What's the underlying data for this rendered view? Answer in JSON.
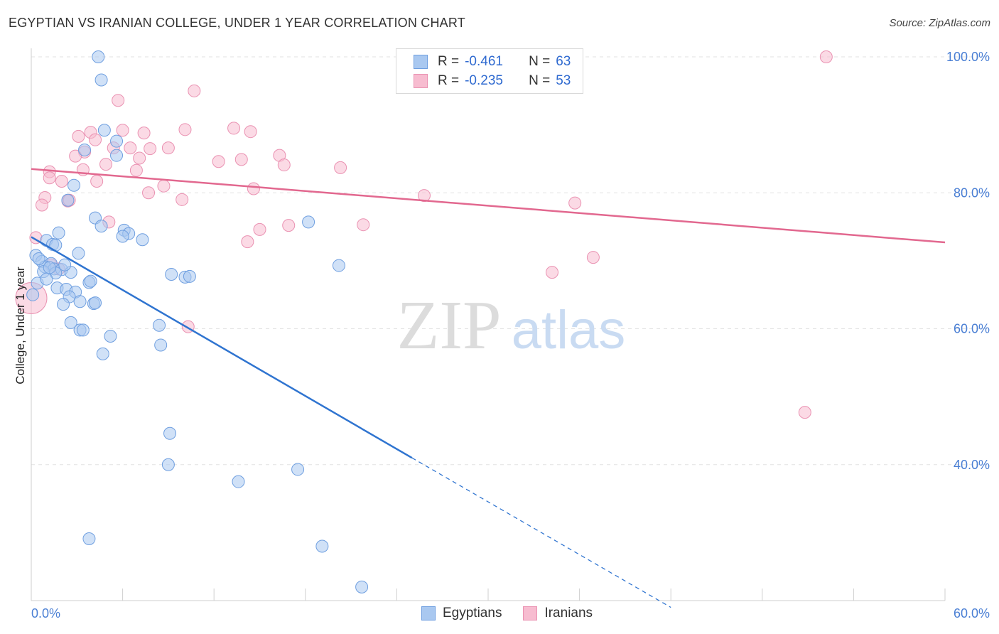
{
  "header": {
    "title": "EGYPTIAN VS IRANIAN COLLEGE, UNDER 1 YEAR CORRELATION CHART",
    "source": "Source: ZipAtlas.com"
  },
  "watermark": {
    "zip": "ZIP",
    "atlas": "atlas"
  },
  "legend": {
    "rows": [
      {
        "r_label": "R =",
        "r_value": "-0.461",
        "n_label": "N =",
        "n_value": "63"
      },
      {
        "r_label": "R =",
        "r_value": "-0.235",
        "n_label": "N =",
        "n_value": "53"
      }
    ]
  },
  "bottom_legend": {
    "items": [
      "Egyptians",
      "Iranians"
    ]
  },
  "colors": {
    "egyptians_fill": "#a9c8f0",
    "egyptians_stroke": "#6f9fe0",
    "egyptians_line": "#2f74d0",
    "iranians_fill": "#f7bcd0",
    "iranians_stroke": "#ea92b2",
    "iranians_line": "#e2688f",
    "tick_text": "#4a7fd4",
    "grid": "#e2e2e2"
  },
  "chart_data": {
    "type": "scatter",
    "title": "EGYPTIAN VS IRANIAN COLLEGE, UNDER 1 YEAR CORRELATION CHART",
    "xlabel": "",
    "ylabel": "College, Under 1 year",
    "xlim": [
      0,
      60
    ],
    "ylim": [
      20,
      100
    ],
    "x_tick_labels": [
      "0.0%",
      "60.0%"
    ],
    "y_ticks": [
      40,
      60,
      80,
      100
    ],
    "y_tick_labels": [
      "40.0%",
      "60.0%",
      "80.0%",
      "100.0%"
    ],
    "grid": true,
    "legend_position": "top-center",
    "series": [
      {
        "name": "Egyptians",
        "R": -0.461,
        "N": 63,
        "trend": {
          "x0": 0.0,
          "y0": 73.5,
          "x1": 25.0,
          "y1": 41.0,
          "dashed_to_x": 42.0,
          "dashed_to_y": 19.0
        },
        "points": [
          [
            4.4,
            100.0
          ],
          [
            4.6,
            96.6
          ],
          [
            4.8,
            89.2
          ],
          [
            5.6,
            87.6
          ],
          [
            3.5,
            86.3
          ],
          [
            5.6,
            85.5
          ],
          [
            2.8,
            81.1
          ],
          [
            2.4,
            78.9
          ],
          [
            4.2,
            76.3
          ],
          [
            4.6,
            75.1
          ],
          [
            6.1,
            74.5
          ],
          [
            6.4,
            74.0
          ],
          [
            6.0,
            73.6
          ],
          [
            7.3,
            73.1
          ],
          [
            1.8,
            74.1
          ],
          [
            1.0,
            73.0
          ],
          [
            1.4,
            72.4
          ],
          [
            1.6,
            72.3
          ],
          [
            3.1,
            71.1
          ],
          [
            0.3,
            70.8
          ],
          [
            0.7,
            69.9
          ],
          [
            1.3,
            69.6
          ],
          [
            0.9,
            69.1
          ],
          [
            1.5,
            68.8
          ],
          [
            2.0,
            68.7
          ],
          [
            1.6,
            68.2
          ],
          [
            0.8,
            68.4
          ],
          [
            2.6,
            68.3
          ],
          [
            3.8,
            66.8
          ],
          [
            3.9,
            67.0
          ],
          [
            0.4,
            66.7
          ],
          [
            1.7,
            66.0
          ],
          [
            2.3,
            65.8
          ],
          [
            2.9,
            65.4
          ],
          [
            2.5,
            64.7
          ],
          [
            3.2,
            64.0
          ],
          [
            2.1,
            63.6
          ],
          [
            4.1,
            63.7
          ],
          [
            4.2,
            63.8
          ],
          [
            0.1,
            65.0
          ],
          [
            2.6,
            60.9
          ],
          [
            3.2,
            59.8
          ],
          [
            3.4,
            59.8
          ],
          [
            5.2,
            58.9
          ],
          [
            8.4,
            60.5
          ],
          [
            8.5,
            57.6
          ],
          [
            4.7,
            56.3
          ],
          [
            9.2,
            68.0
          ],
          [
            10.1,
            67.6
          ],
          [
            10.4,
            67.7
          ],
          [
            18.2,
            75.7
          ],
          [
            20.2,
            69.3
          ],
          [
            9.1,
            44.6
          ],
          [
            9.0,
            40.0
          ],
          [
            13.6,
            37.5
          ],
          [
            17.5,
            39.3
          ],
          [
            3.8,
            29.1
          ],
          [
            19.1,
            28.0
          ],
          [
            21.7,
            22.0
          ],
          [
            1.0,
            67.3
          ],
          [
            2.2,
            69.4
          ],
          [
            0.5,
            70.3
          ],
          [
            1.2,
            69.0
          ]
        ]
      },
      {
        "name": "Iranians",
        "R": -0.235,
        "N": 53,
        "trend": {
          "x0": 0.0,
          "y0": 83.5,
          "x1": 60.0,
          "y1": 72.7
        },
        "points": [
          [
            52.2,
            100.0
          ],
          [
            10.7,
            95.0
          ],
          [
            5.7,
            93.6
          ],
          [
            13.3,
            89.5
          ],
          [
            14.4,
            89.0
          ],
          [
            6.0,
            89.2
          ],
          [
            10.1,
            89.3
          ],
          [
            7.4,
            88.8
          ],
          [
            3.9,
            88.9
          ],
          [
            3.1,
            88.3
          ],
          [
            4.2,
            87.8
          ],
          [
            5.4,
            86.6
          ],
          [
            6.5,
            86.6
          ],
          [
            7.8,
            86.5
          ],
          [
            9.0,
            86.6
          ],
          [
            3.5,
            86.0
          ],
          [
            2.9,
            85.4
          ],
          [
            7.1,
            85.1
          ],
          [
            16.3,
            85.5
          ],
          [
            12.3,
            84.6
          ],
          [
            13.8,
            84.9
          ],
          [
            4.9,
            84.2
          ],
          [
            16.6,
            84.1
          ],
          [
            20.3,
            83.7
          ],
          [
            6.9,
            83.3
          ],
          [
            1.2,
            83.1
          ],
          [
            3.4,
            83.4
          ],
          [
            1.2,
            82.2
          ],
          [
            2.0,
            81.7
          ],
          [
            4.3,
            81.7
          ],
          [
            8.7,
            81.0
          ],
          [
            7.7,
            80.0
          ],
          [
            14.6,
            80.6
          ],
          [
            0.9,
            79.3
          ],
          [
            25.8,
            79.6
          ],
          [
            9.9,
            79.0
          ],
          [
            2.4,
            78.8
          ],
          [
            0.7,
            78.2
          ],
          [
            35.7,
            78.5
          ],
          [
            5.1,
            75.7
          ],
          [
            15.0,
            74.6
          ],
          [
            16.9,
            75.2
          ],
          [
            21.8,
            75.3
          ],
          [
            0.3,
            73.4
          ],
          [
            14.2,
            72.8
          ],
          [
            1.3,
            69.4
          ],
          [
            1.8,
            68.8
          ],
          [
            34.2,
            68.3
          ],
          [
            36.9,
            70.5
          ],
          [
            10.3,
            60.3
          ],
          [
            50.8,
            47.7
          ],
          [
            0.0,
            64.5
          ],
          [
            2.5,
            78.9
          ]
        ]
      }
    ]
  }
}
